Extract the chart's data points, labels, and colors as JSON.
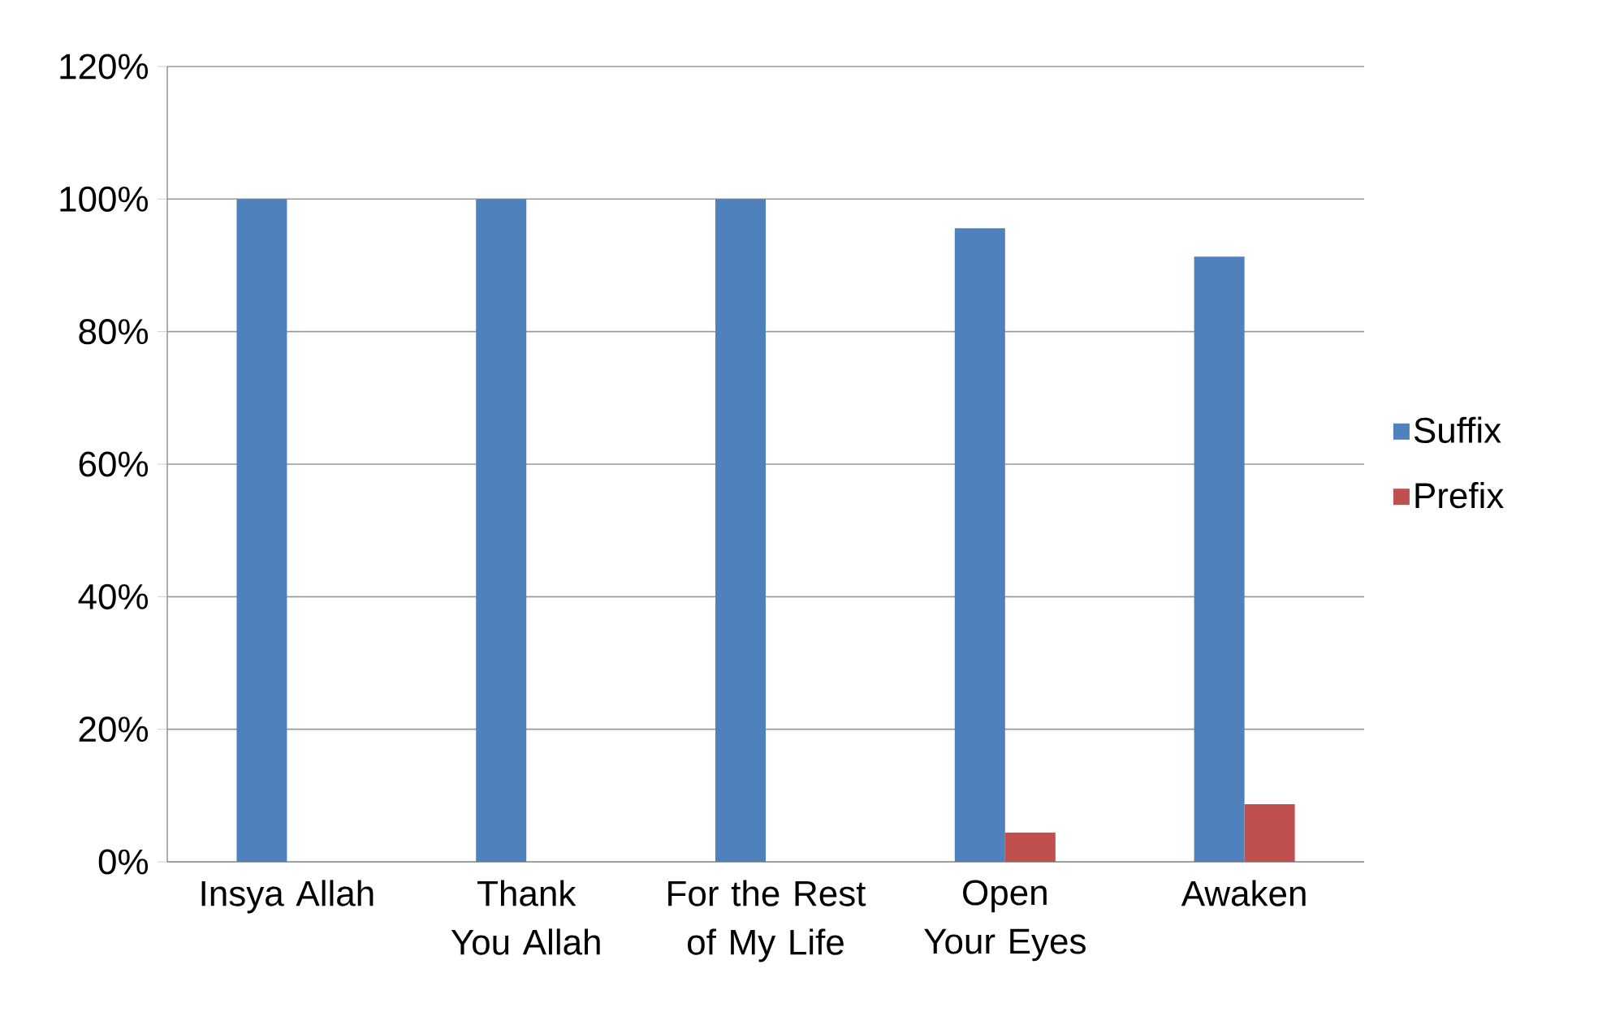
{
  "chart_data": {
    "type": "bar",
    "categories": [
      "Insya Allah",
      "Thank You Allah",
      "For the Rest of My Life",
      "Open Your Eyes",
      "Awaken"
    ],
    "series": [
      {
        "name": "Suffix",
        "color": "#4f81bd",
        "values": [
          100,
          100,
          100,
          95.6,
          91.3
        ]
      },
      {
        "name": "Prefix",
        "color": "#c0504d",
        "values": [
          0,
          0,
          0,
          4.4,
          8.7
        ]
      }
    ],
    "ylim": [
      0,
      120
    ],
    "yticks": [
      {
        "value": 0,
        "label": "0%"
      },
      {
        "value": 20,
        "label": "20%"
      },
      {
        "value": 40,
        "label": "40%"
      },
      {
        "value": 60,
        "label": "60%"
      },
      {
        "value": 80,
        "label": "80%"
      },
      {
        "value": 100,
        "label": "100%"
      },
      {
        "value": 120,
        "label": "120%"
      }
    ],
    "grid": "y",
    "legend": "right"
  }
}
